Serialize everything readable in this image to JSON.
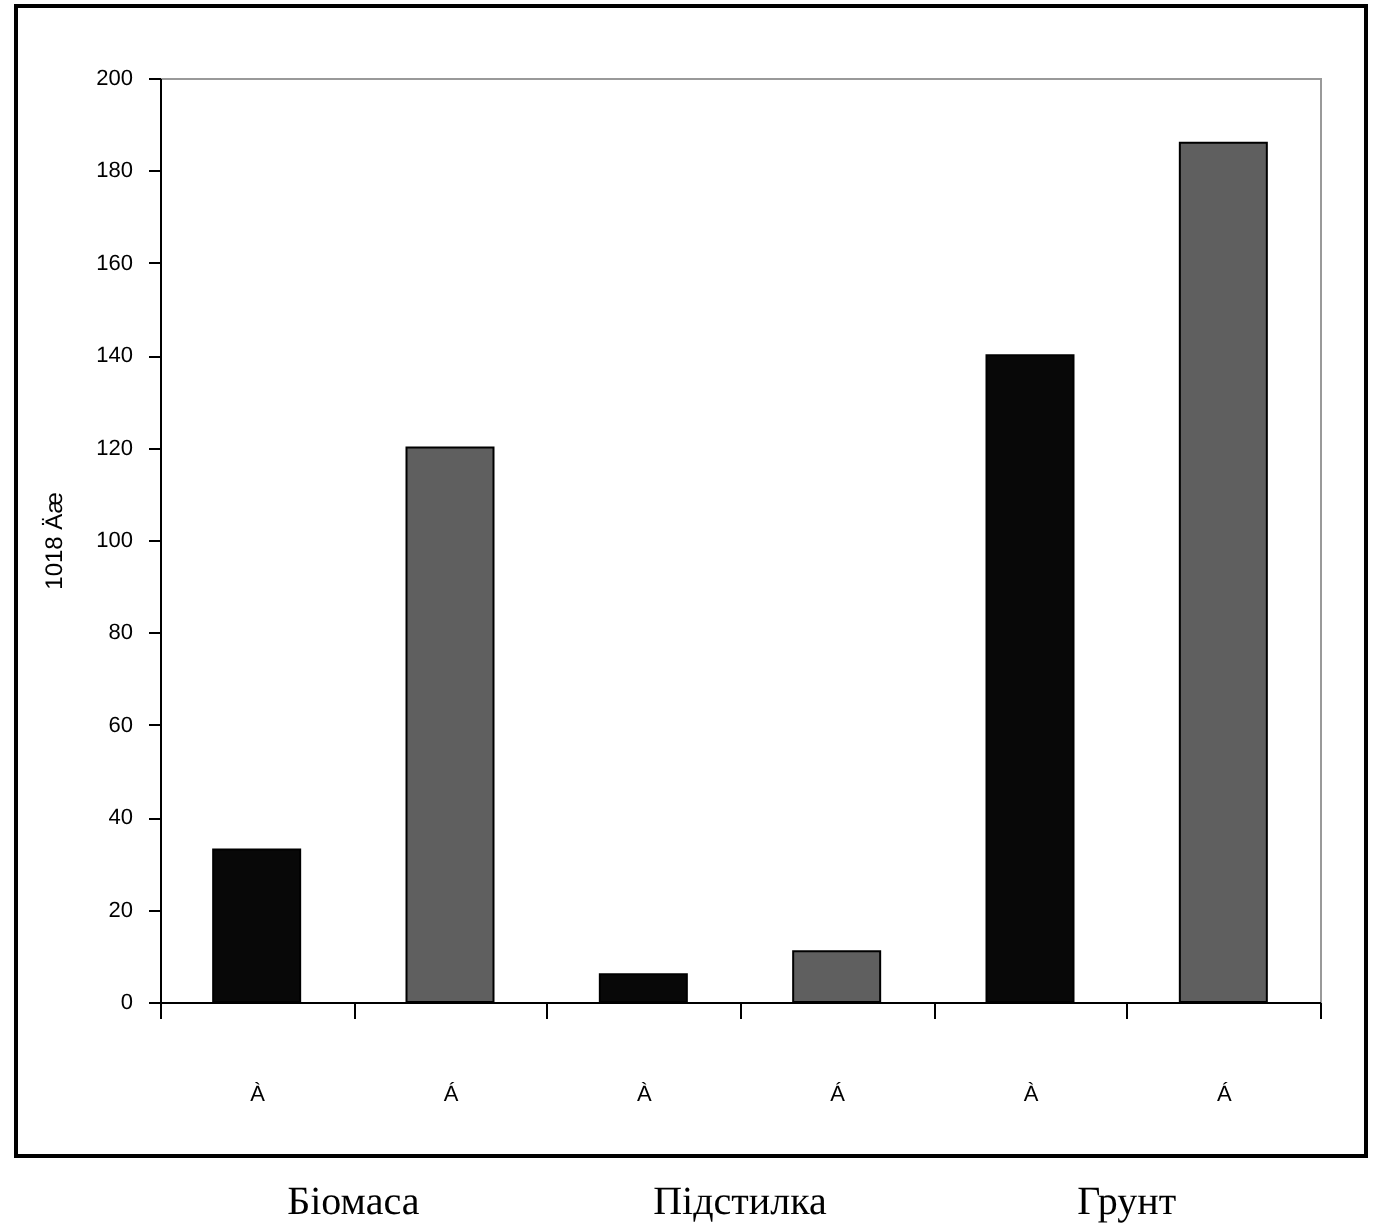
{
  "chart_data": {
    "type": "bar",
    "ylabel": "1018 Äæ",
    "categories": [
      "À",
      "Á",
      "À",
      "Á",
      "À",
      "Á"
    ],
    "values": [
      33,
      120,
      6,
      11,
      140,
      186
    ],
    "colors": [
      "#080808",
      "#5f5f5f",
      "#080808",
      "#5f5f5f",
      "#080808",
      "#5f5f5f"
    ],
    "ylim": [
      0,
      200
    ],
    "yticks": [
      0,
      20,
      40,
      60,
      80,
      100,
      120,
      140,
      160,
      180,
      200
    ],
    "grid": false,
    "annotations": [
      "Біомаса",
      "Підстилка",
      "Грунт"
    ]
  }
}
